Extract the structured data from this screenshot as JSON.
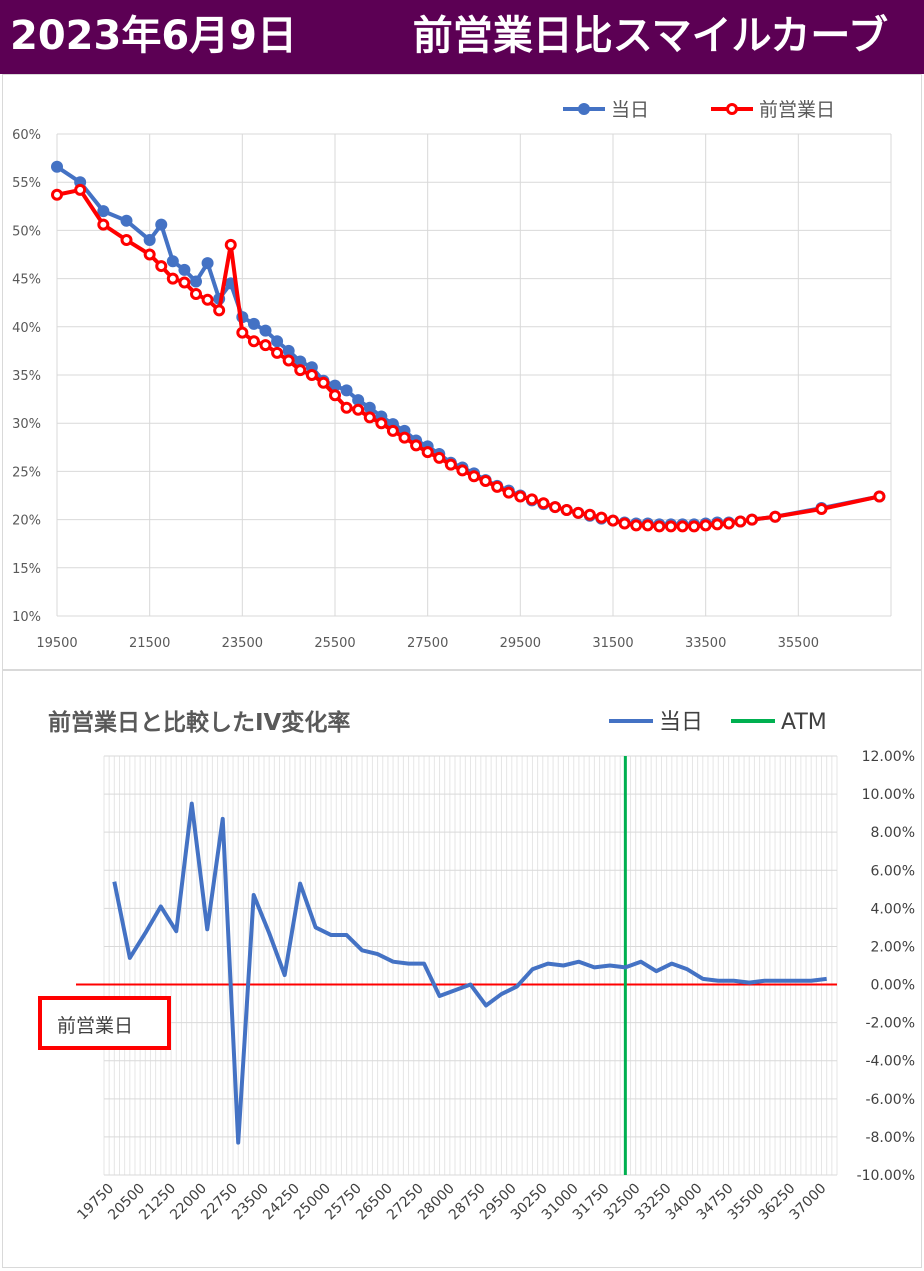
{
  "header": {
    "date": "2023年6月9日",
    "title": "前営業日比スマイルカーブ"
  },
  "colors": {
    "header_bg": "#5c0054",
    "today": "#4472c4",
    "prev": "#ff0000",
    "atm": "#00b050",
    "grid": "#d9d9d9"
  },
  "chart_data": [
    {
      "type": "line",
      "title": "",
      "legend": [
        "当日",
        "前営業日"
      ],
      "legend_position": "top-right",
      "grid": true,
      "xlim": [
        19500,
        37500
      ],
      "ylim": [
        10,
        60
      ],
      "x_ticks": [
        19500,
        21500,
        23500,
        25500,
        27500,
        29500,
        31500,
        33500,
        35500
      ],
      "x_tick_labels": [
        "19500",
        "21500",
        "23500",
        "25500",
        "27500",
        "29500",
        "31500",
        "33500",
        "35500"
      ],
      "y_ticks": [
        10,
        15,
        20,
        25,
        30,
        35,
        40,
        45,
        50,
        55,
        60
      ],
      "y_tick_labels": [
        "10%",
        "15%",
        "20%",
        "25%",
        "30%",
        "35%",
        "40%",
        "45%",
        "50%",
        "55%",
        "60%"
      ],
      "series": [
        {
          "name": "当日",
          "x": [
            19500,
            20000,
            20500,
            21000,
            21500,
            21750,
            22000,
            22250,
            22500,
            22750,
            23000,
            23250,
            23500,
            23750,
            24000,
            24250,
            24500,
            24750,
            25000,
            25250,
            25500,
            25750,
            26000,
            26250,
            26500,
            26750,
            27000,
            27250,
            27500,
            27750,
            28000,
            28250,
            28500,
            28750,
            29000,
            29250,
            29500,
            29750,
            30000,
            30250,
            30500,
            30750,
            31000,
            31250,
            31500,
            31750,
            32000,
            32250,
            32500,
            32750,
            33000,
            33250,
            33500,
            33750,
            34000,
            34250,
            34500,
            35000,
            36000,
            37250
          ],
          "y": [
            56.6,
            55.0,
            52.0,
            51.0,
            49.0,
            50.6,
            46.8,
            45.9,
            44.7,
            46.6,
            42.9,
            44.5,
            41.0,
            40.3,
            39.6,
            38.5,
            37.5,
            36.4,
            35.8,
            34.4,
            33.9,
            33.4,
            32.4,
            31.6,
            30.7,
            29.9,
            29.2,
            28.2,
            27.6,
            26.8,
            25.9,
            25.4,
            24.8,
            24.1,
            23.5,
            23.0,
            22.5,
            22.0,
            21.6,
            21.3,
            21.0,
            20.7,
            20.4,
            20.1,
            19.9,
            19.7,
            19.6,
            19.6,
            19.5,
            19.5,
            19.5,
            19.5,
            19.6,
            19.7,
            19.7,
            19.8,
            20.0,
            20.3,
            21.2,
            22.4
          ]
        },
        {
          "name": "前営業日",
          "x": [
            19500,
            20000,
            20500,
            21000,
            21500,
            21750,
            22000,
            22250,
            22500,
            22750,
            23000,
            23250,
            23500,
            23750,
            24000,
            24250,
            24500,
            24750,
            25000,
            25250,
            25500,
            25750,
            26000,
            26250,
            26500,
            26750,
            27000,
            27250,
            27500,
            27750,
            28000,
            28250,
            28500,
            28750,
            29000,
            29250,
            29500,
            29750,
            30000,
            30250,
            30500,
            30750,
            31000,
            31250,
            31500,
            31750,
            32000,
            32250,
            32500,
            32750,
            33000,
            33250,
            33500,
            33750,
            34000,
            34250,
            34500,
            35000,
            36000,
            37250
          ],
          "y": [
            53.7,
            54.2,
            50.6,
            49.0,
            47.5,
            46.3,
            45.0,
            44.6,
            43.4,
            42.8,
            41.7,
            48.5,
            39.4,
            38.5,
            38.1,
            37.3,
            36.5,
            35.5,
            35.0,
            34.2,
            32.9,
            31.6,
            31.4,
            30.6,
            30.0,
            29.2,
            28.5,
            27.7,
            27.0,
            26.4,
            25.7,
            25.1,
            24.5,
            24.0,
            23.4,
            22.8,
            22.4,
            22.1,
            21.7,
            21.3,
            21.0,
            20.7,
            20.5,
            20.2,
            19.9,
            19.6,
            19.4,
            19.4,
            19.3,
            19.3,
            19.3,
            19.3,
            19.4,
            19.5,
            19.6,
            19.8,
            20.0,
            20.3,
            21.1,
            22.4
          ]
        }
      ]
    },
    {
      "type": "line",
      "title": "前営業日と比較したIV変化率",
      "legend": [
        "当日",
        "ATM"
      ],
      "legend_position": "top-right",
      "grid": true,
      "ylim": [
        -10,
        12
      ],
      "y_ticks": [
        -10,
        -8,
        -6,
        -4,
        -2,
        0,
        2,
        4,
        6,
        8,
        10,
        12
      ],
      "y_tick_labels": [
        "-10.00%",
        "-8.00%",
        "-6.00%",
        "-4.00%",
        "-2.00%",
        "0.00%",
        "2.00%",
        "4.00%",
        "6.00%",
        "8.00%",
        "10.00%",
        "12.00%"
      ],
      "x_tick_labels": [
        "19750",
        "20500",
        "21250",
        "22000",
        "22750",
        "23500",
        "24250",
        "25000",
        "25750",
        "26500",
        "27250",
        "28000",
        "28750",
        "29500",
        "30250",
        "31000",
        "31750",
        "32500",
        "33250",
        "34000",
        "34750",
        "35500",
        "36250",
        "37000"
      ],
      "atm_strike": 32125,
      "baseline_label": "前営業日",
      "series": [
        {
          "name": "当日",
          "x": [
            19750,
            20125,
            20500,
            20875,
            21250,
            21625,
            22000,
            22375,
            22750,
            23125,
            23500,
            23875,
            24250,
            24625,
            25000,
            25375,
            25750,
            26125,
            26500,
            26875,
            27250,
            27625,
            28000,
            28375,
            28750,
            29125,
            29500,
            29875,
            30250,
            30625,
            31000,
            31375,
            31750,
            32125,
            32500,
            32875,
            33250,
            33625,
            34000,
            34375,
            34750,
            35125,
            35500,
            35875,
            36250,
            36625,
            37000
          ],
          "y": [
            5.4,
            1.4,
            2.7,
            4.1,
            2.8,
            9.5,
            2.9,
            8.7,
            -8.3,
            4.7,
            2.7,
            0.5,
            5.3,
            3.0,
            2.6,
            2.6,
            1.8,
            1.6,
            1.2,
            1.1,
            1.1,
            -0.6,
            -0.3,
            0.0,
            -1.1,
            -0.5,
            -0.1,
            0.8,
            1.1,
            1.0,
            1.2,
            0.9,
            1.0,
            0.9,
            1.2,
            0.7,
            1.1,
            0.8,
            0.3,
            0.2,
            0.2,
            0.1,
            0.2,
            0.2,
            0.2,
            0.2,
            0.3
          ]
        }
      ]
    }
  ]
}
